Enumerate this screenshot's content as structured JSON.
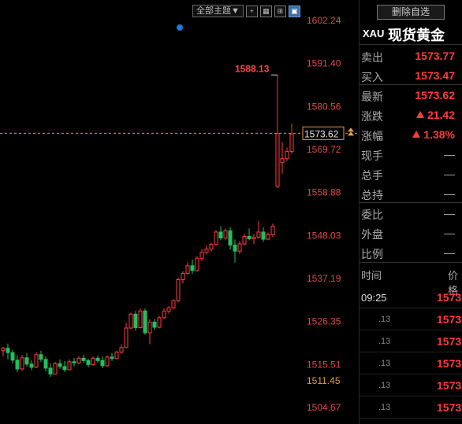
{
  "toolbar": {
    "theme_label": "全部主题▼",
    "icons": [
      "crosshair-icon",
      "multi-window-icon",
      "chart-zoom-icon",
      "overlay-icon"
    ]
  },
  "chart": {
    "price_labels": [
      "1602.24",
      "1591.40",
      "1580.56",
      "1569.72",
      "1558.88",
      "1548.03",
      "1537.19",
      "1526.35",
      "1515.51",
      "1504.67"
    ],
    "current_price_tag": "1573.62",
    "low_price_tag": "1511.45",
    "high_annotation": "1588.13",
    "colors": {
      "up": "#ff3b3b",
      "down": "#20c060",
      "current_line": "#e8a040",
      "label": "#e04848"
    }
  },
  "chart_data": {
    "type": "candlestick",
    "ylim": [
      1500,
      1605
    ],
    "candles": [
      [
        1519.0,
        1520.0,
        1517.5,
        1519.6
      ],
      [
        1519.6,
        1520.8,
        1516.8,
        1518.5
      ],
      [
        1518.5,
        1519.2,
        1515.8,
        1516.6
      ],
      [
        1516.6,
        1517.8,
        1513.6,
        1514.4
      ],
      [
        1514.4,
        1517.9,
        1513.9,
        1517.2
      ],
      [
        1517.2,
        1518.4,
        1514.9,
        1515.6
      ],
      [
        1515.6,
        1516.6,
        1514.0,
        1514.8
      ],
      [
        1514.8,
        1518.6,
        1514.6,
        1518.0
      ],
      [
        1518.0,
        1519.0,
        1516.1,
        1516.8
      ],
      [
        1516.8,
        1517.5,
        1513.8,
        1514.6
      ],
      [
        1514.6,
        1515.8,
        1512.4,
        1513.1
      ],
      [
        1513.1,
        1516.2,
        1512.9,
        1515.7
      ],
      [
        1515.7,
        1516.8,
        1514.4,
        1515.0
      ],
      [
        1515.0,
        1516.4,
        1513.6,
        1514.2
      ],
      [
        1514.2,
        1516.8,
        1514.0,
        1516.2
      ],
      [
        1516.2,
        1517.2,
        1515.0,
        1515.9
      ],
      [
        1515.9,
        1517.6,
        1515.6,
        1517.1
      ],
      [
        1517.1,
        1517.9,
        1515.9,
        1516.5
      ],
      [
        1516.5,
        1517.0,
        1514.8,
        1515.5
      ],
      [
        1515.5,
        1517.5,
        1515.2,
        1517.1
      ],
      [
        1517.1,
        1517.8,
        1516.0,
        1516.5
      ],
      [
        1516.5,
        1517.5,
        1514.6,
        1515.2
      ],
      [
        1515.2,
        1517.8,
        1515.0,
        1517.4
      ],
      [
        1517.4,
        1518.4,
        1516.4,
        1517.0
      ],
      [
        1517.0,
        1519.0,
        1516.8,
        1518.6
      ],
      [
        1518.6,
        1520.6,
        1518.2,
        1519.8
      ],
      [
        1519.8,
        1526.0,
        1519.6,
        1524.7
      ],
      [
        1524.7,
        1528.6,
        1524.4,
        1528.2
      ],
      [
        1528.2,
        1529.0,
        1524.0,
        1524.8
      ],
      [
        1524.8,
        1529.6,
        1524.6,
        1529.0
      ],
      [
        1529.0,
        1529.6,
        1523.0,
        1523.5
      ],
      [
        1523.5,
        1526.9,
        1520.6,
        1526.2
      ],
      [
        1526.2,
        1527.0,
        1524.2,
        1524.9
      ],
      [
        1524.9,
        1527.8,
        1524.6,
        1527.3
      ],
      [
        1527.3,
        1529.6,
        1527.0,
        1528.9
      ],
      [
        1528.9,
        1530.2,
        1528.4,
        1529.8
      ],
      [
        1529.8,
        1532.0,
        1529.4,
        1531.6
      ],
      [
        1531.6,
        1537.4,
        1531.2,
        1536.9
      ],
      [
        1536.9,
        1539.0,
        1536.0,
        1538.5
      ],
      [
        1538.5,
        1541.2,
        1538.1,
        1540.4
      ],
      [
        1540.4,
        1542.0,
        1538.4,
        1539.2
      ],
      [
        1539.2,
        1542.8,
        1538.9,
        1542.3
      ],
      [
        1542.3,
        1544.6,
        1541.6,
        1543.8
      ],
      [
        1543.8,
        1545.6,
        1543.2,
        1544.6
      ],
      [
        1544.6,
        1546.2,
        1544.0,
        1545.8
      ],
      [
        1545.8,
        1549.4,
        1545.4,
        1548.9
      ],
      [
        1548.9,
        1550.4,
        1546.8,
        1547.4
      ],
      [
        1547.4,
        1549.8,
        1546.8,
        1549.2
      ],
      [
        1549.2,
        1550.2,
        1544.4,
        1545.6
      ],
      [
        1545.6,
        1547.0,
        1541.2,
        1544.1
      ],
      [
        1544.1,
        1546.6,
        1543.4,
        1545.9
      ],
      [
        1545.9,
        1548.4,
        1545.4,
        1547.8
      ],
      [
        1547.8,
        1549.8,
        1546.8,
        1547.2
      ],
      [
        1547.2,
        1548.4,
        1545.8,
        1547.6
      ],
      [
        1547.6,
        1551.6,
        1547.2,
        1548.9
      ],
      [
        1548.9,
        1550.1,
        1546.4,
        1547.1
      ],
      [
        1547.1,
        1548.8,
        1546.8,
        1548.2
      ],
      [
        1548.2,
        1551.0,
        1547.6,
        1550.4
      ],
      [
        1560.4,
        1588.5,
        1560.0,
        1573.7
      ],
      [
        1566.4,
        1571.6,
        1563.6,
        1567.4
      ],
      [
        1567.4,
        1570.2,
        1566.8,
        1569.2
      ],
      [
        1569.2,
        1576.2,
        1568.6,
        1573.6
      ]
    ],
    "annotations": [
      "1588.13"
    ]
  },
  "panel": {
    "delete_button": "删除自选",
    "symbol_code": "XAU",
    "symbol_name": "现货黄金",
    "quotes": [
      {
        "label": "卖出",
        "value": "1573.77"
      },
      {
        "label": "买入",
        "value": "1573.47"
      },
      {
        "label": "最新",
        "value": "1573.62"
      },
      {
        "label": "涨跌",
        "value": "21.42",
        "arrow": "up-arrow-icon"
      },
      {
        "label": "涨幅",
        "value": "1.38%",
        "arrow": "up-arrow-icon"
      },
      {
        "label": "现手",
        "value": "—"
      },
      {
        "label": "总手",
        "value": "—"
      },
      {
        "label": "总持",
        "value": "—"
      },
      {
        "label": "委比",
        "value": "—"
      },
      {
        "label": "外盘",
        "value": "—"
      },
      {
        "label": "比例",
        "value": "—"
      }
    ],
    "ticks_header": {
      "time": "时间",
      "price": "价格"
    },
    "ticks": [
      {
        "time": "09:25",
        "price": "1573"
      },
      {
        "time": ".13",
        "price": "1573"
      },
      {
        "time": ".13",
        "price": "1573"
      },
      {
        "time": ".13",
        "price": "1573"
      },
      {
        "time": ".13",
        "price": "1573"
      },
      {
        "time": ".13",
        "price": "1573"
      }
    ]
  }
}
